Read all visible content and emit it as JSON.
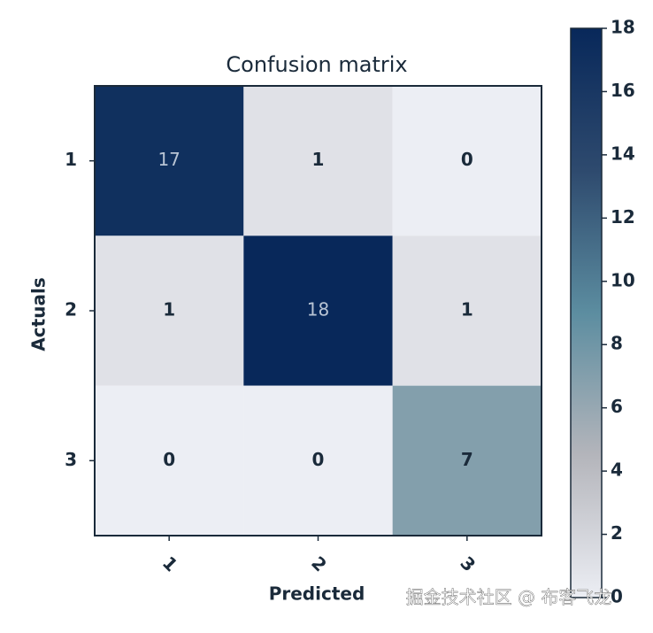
{
  "chart_data": {
    "type": "heatmap",
    "title": "Confusion matrix",
    "x_label": "Predicted",
    "y_label": "Actuals",
    "x_categories": [
      "1",
      "2",
      "3"
    ],
    "y_categories": [
      "1",
      "2",
      "3"
    ],
    "values": [
      [
        17,
        1,
        0
      ],
      [
        1,
        18,
        1
      ],
      [
        0,
        0,
        7
      ]
    ],
    "colormap": [
      "#eceef4",
      "#b4b5bb",
      "#5c8da0",
      "#2e4a6e",
      "#08285a"
    ],
    "colorbar_lim": [
      0,
      18
    ],
    "colorbar_ticks": [
      0,
      2,
      4,
      6,
      8,
      10,
      12,
      14,
      16,
      18
    ]
  },
  "watermark": "掘金技术社区 @ 布客飞龙"
}
